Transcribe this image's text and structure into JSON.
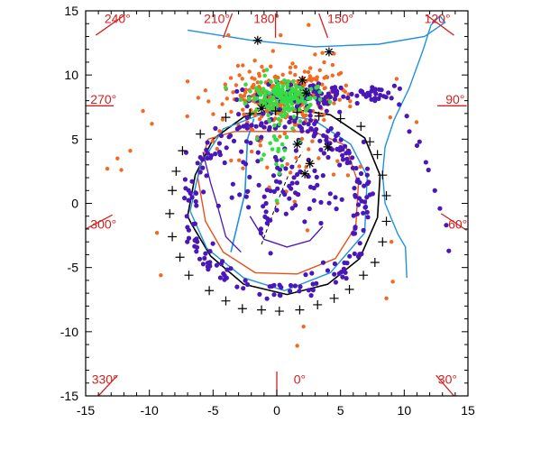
{
  "chart_data": {
    "type": "scatter",
    "title": "",
    "xlabel": "",
    "ylabel": "",
    "xlim": [
      -15,
      15
    ],
    "ylim": [
      -15,
      15
    ],
    "grid": false,
    "x_ticks": [
      -15,
      -10,
      -5,
      0,
      5,
      10,
      15
    ],
    "y_ticks": [
      -15,
      -10,
      -5,
      0,
      5,
      10,
      15
    ],
    "angle_labels": [
      {
        "text": "240°",
        "pos": [
          -12.5,
          14.4
        ]
      },
      {
        "text": "210°",
        "pos": [
          -4.7,
          14.4
        ]
      },
      {
        "text": "180°",
        "pos": [
          -0.8,
          14.4
        ]
      },
      {
        "text": "150°",
        "pos": [
          5.0,
          14.4
        ]
      },
      {
        "text": "120°",
        "pos": [
          12.6,
          14.4
        ]
      },
      {
        "text": "270°",
        "pos": [
          -13.6,
          8.1
        ]
      },
      {
        "text": "90°",
        "pos": [
          14.0,
          8.1
        ]
      },
      {
        "text": "300°",
        "pos": [
          -13.6,
          -1.6
        ]
      },
      {
        "text": "60°",
        "pos": [
          14.2,
          -1.6
        ]
      },
      {
        "text": "330°",
        "pos": [
          -13.5,
          -13.7
        ]
      },
      {
        "text": "0°",
        "pos": [
          1.8,
          -13.7
        ]
      },
      {
        "text": "30°",
        "pos": [
          13.4,
          -13.7
        ]
      }
    ],
    "angle_ticks": [
      [
        [
          -14.2,
          13.1
        ],
        [
          -11.9,
          14.7
        ]
      ],
      [
        [
          -4.2,
          12.9
        ],
        [
          -3.5,
          14.8
        ]
      ],
      [
        [
          -0.1,
          12.9
        ],
        [
          -0.1,
          14.8
        ]
      ],
      [
        [
          4.0,
          12.9
        ],
        [
          3.3,
          14.8
        ]
      ],
      [
        [
          11.7,
          14.7
        ],
        [
          13.9,
          13.1
        ]
      ],
      [
        [
          -15.0,
          7.6
        ],
        [
          -12.8,
          7.6
        ]
      ],
      [
        [
          12.6,
          7.6
        ],
        [
          14.9,
          7.6
        ]
      ],
      [
        [
          -15.0,
          -2.0
        ],
        [
          -12.9,
          -0.9
        ]
      ],
      [
        [
          12.9,
          -0.8
        ],
        [
          14.9,
          -2.1
        ]
      ],
      [
        [
          -14.0,
          -15.0
        ],
        [
          -12.5,
          -13.4
        ]
      ],
      [
        [
          0.0,
          -15.0
        ],
        [
          0.0,
          -13.1
        ]
      ],
      [
        [
          12.5,
          -13.4
        ],
        [
          13.9,
          -15.0
        ]
      ]
    ],
    "colors": {
      "orange_points": "#f26a21",
      "purple_points": "#4a17b8",
      "green_points": "#33dd44",
      "blue_curve": "#1e90e0",
      "orange_curve": "#e8501a",
      "black_curve": "#000000",
      "plus_markers": "#000000",
      "angle_labels": "#d42020"
    },
    "series": [
      {
        "kind": "plus",
        "points": [
          [
            -6.0,
            5.4
          ],
          [
            -7.4,
            4.1
          ],
          [
            -7.9,
            2.5
          ],
          [
            -8.2,
            1.0
          ],
          [
            -8.4,
            -0.8
          ],
          [
            -8.2,
            -2.6
          ],
          [
            -7.6,
            -4.2
          ],
          [
            -6.9,
            -5.6
          ],
          [
            -5.3,
            -6.8
          ],
          [
            -4.0,
            -7.6
          ],
          [
            -2.7,
            -8.2
          ],
          [
            -1.2,
            -8.3
          ],
          [
            0.2,
            -8.4
          ],
          [
            1.8,
            -8.3
          ],
          [
            3.2,
            -7.9
          ],
          [
            4.5,
            -7.4
          ],
          [
            5.7,
            -6.7
          ],
          [
            6.8,
            -5.6
          ],
          [
            7.7,
            -4.6
          ],
          [
            8.3,
            -3.0
          ],
          [
            8.6,
            -1.4
          ],
          [
            8.6,
            0.6
          ],
          [
            8.3,
            2.2
          ],
          [
            7.9,
            3.8
          ],
          [
            7.3,
            4.8
          ],
          [
            6.6,
            6.0
          ],
          [
            5.0,
            6.6
          ],
          [
            3.3,
            6.8
          ],
          [
            1.6,
            7.1
          ],
          [
            -0.1,
            7.2
          ],
          [
            -2.1,
            7.0
          ],
          [
            -4.0,
            6.7
          ]
        ]
      },
      {
        "kind": "star",
        "points": [
          [
            -1.5,
            12.7
          ],
          [
            4.1,
            11.8
          ],
          [
            -1.2,
            7.4
          ],
          [
            2.0,
            9.6
          ],
          [
            1.6,
            4.6
          ],
          [
            2.6,
            3.1
          ],
          [
            4.0,
            4.4
          ],
          [
            2.2,
            2.3
          ],
          [
            2.3,
            8.6
          ]
        ]
      }
    ]
  }
}
